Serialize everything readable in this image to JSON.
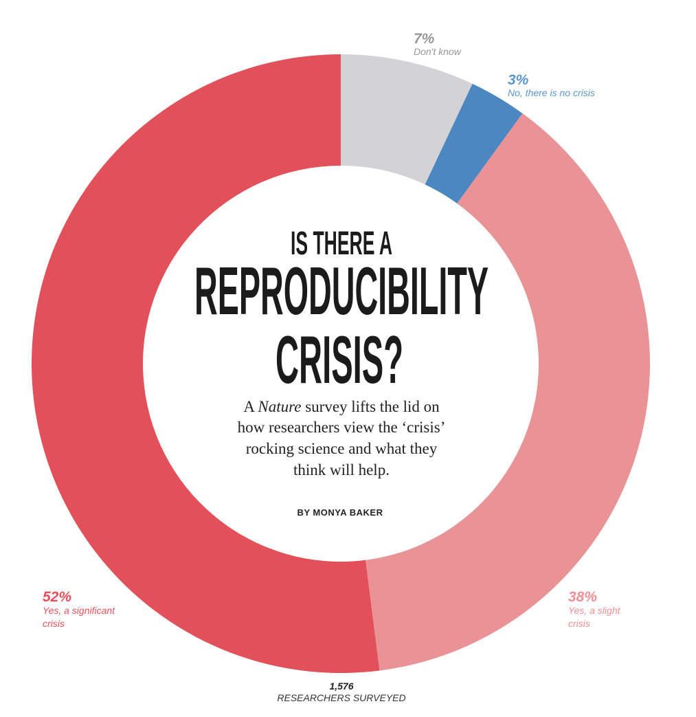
{
  "chart_data": {
    "type": "pie",
    "subtype": "donut",
    "title": "IS THERE A REPRODUCIBILITY CRISIS?",
    "slices": [
      {
        "pct_label": "7%",
        "label": "Don't know",
        "value": 7,
        "color": "#d3d3d5",
        "text_color": "#979797"
      },
      {
        "pct_label": "3%",
        "label": "No, there is no crisis",
        "value": 3,
        "color": "#4b87c1",
        "text_color": "#5b95cd"
      },
      {
        "pct_label": "38%",
        "label_lines": [
          "Yes, a slight",
          "crisis"
        ],
        "value": 38,
        "color": "#ea9396",
        "text_color": "#ef8e93"
      },
      {
        "pct_label": "52%",
        "label_lines": [
          "Yes, a significant",
          "crisis"
        ],
        "value": 52,
        "color": "#e2505a",
        "text_color": "#e84f5a"
      }
    ],
    "start": "top",
    "direction": "clockwise",
    "total": {
      "count": "1,576",
      "label": "RESEARCHERS SURVEYED"
    }
  },
  "headline": {
    "line1": "IS THERE A",
    "line2": "REPRODUCIBILITY",
    "line3": "CRISIS?"
  },
  "standfirst": {
    "line1_prefix": "A ",
    "line1_italic": "Nature",
    "line1_suffix": " survey lifts the lid on",
    "line2": "how researchers view the ‘crisis’",
    "line3": "rocking science and what they",
    "line4": "think will help."
  },
  "byline": "BY MONYA BAKER"
}
